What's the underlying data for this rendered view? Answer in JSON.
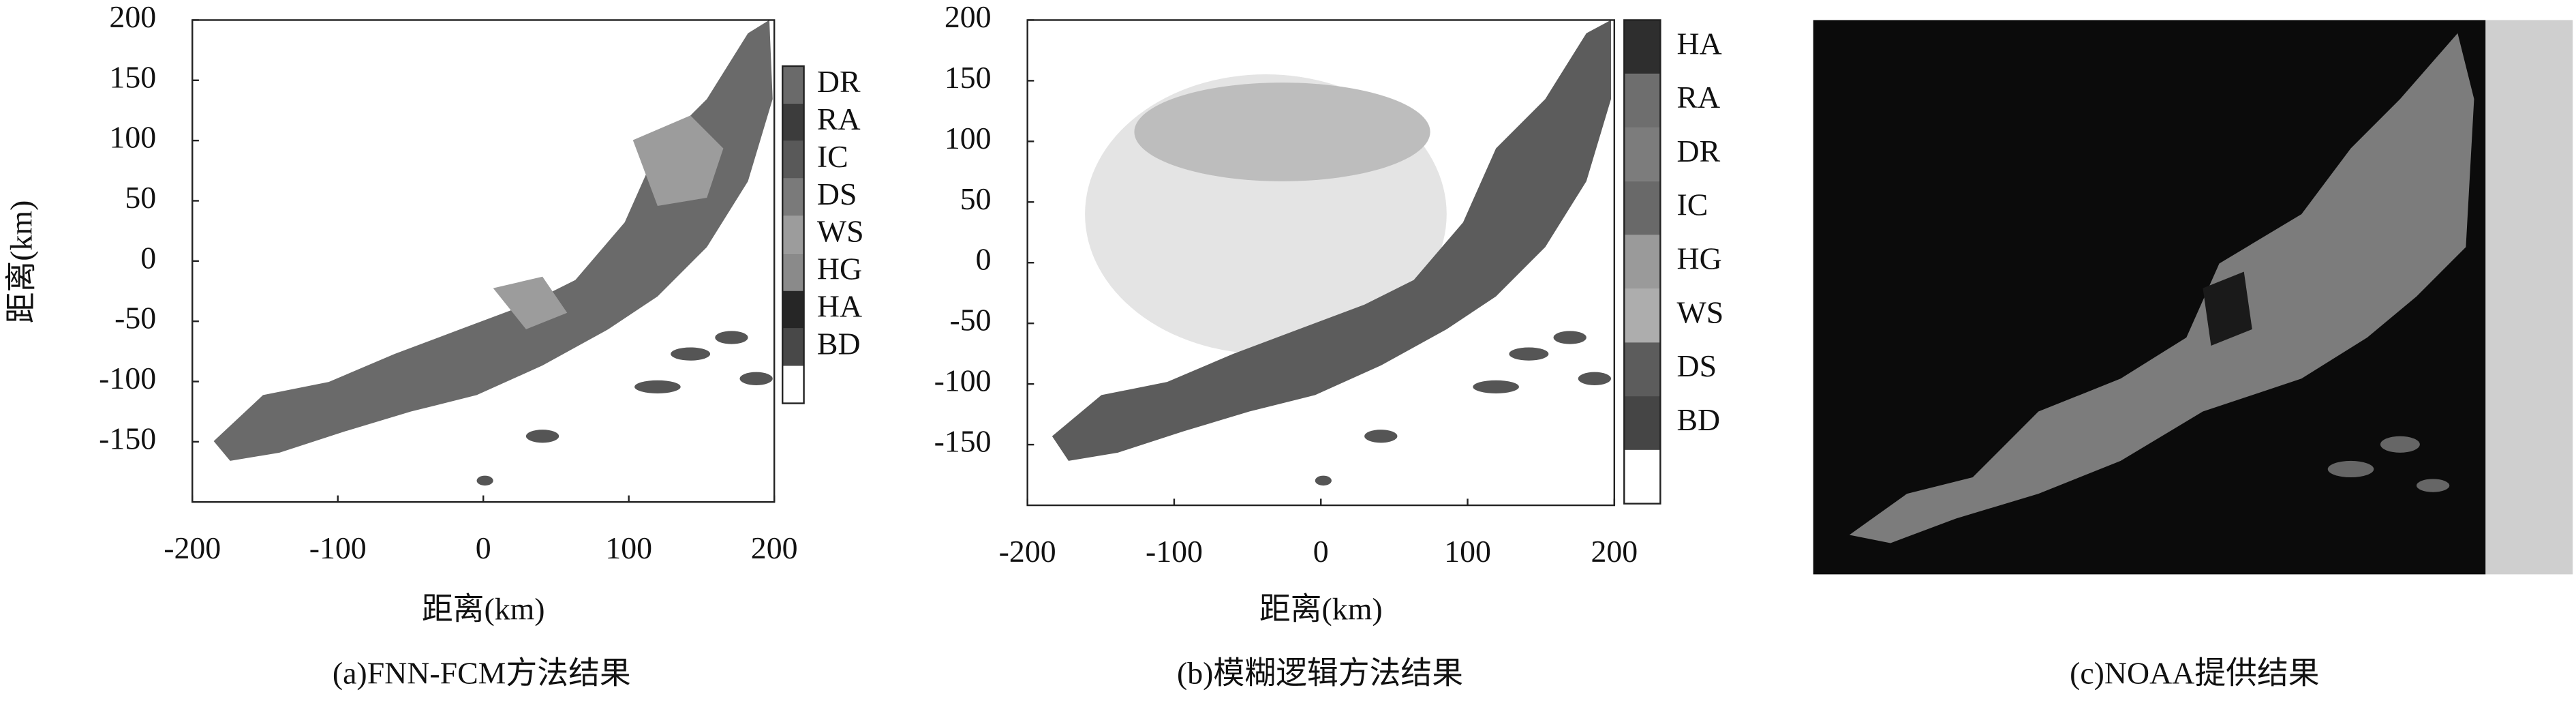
{
  "chart_data": [
    {
      "type": "heatmap",
      "caption": "(a)FNN-FCM方法结果",
      "xlabel": "距离(km)",
      "ylabel": "距离(km)",
      "xlim": [
        -200,
        200
      ],
      "ylim": [
        -200,
        200
      ],
      "xticks": [
        -200,
        -100,
        0,
        100,
        200
      ],
      "yticks": [
        -150,
        -100,
        -50,
        0,
        50,
        100,
        150,
        200
      ],
      "legend": {
        "labels": [
          "DR",
          "RA",
          "IC",
          "DS",
          "WS",
          "HG",
          "HA",
          "BD"
        ],
        "colors": [
          "#6a6a6a",
          "#3c3c3c",
          "#595959",
          "#7a7a7a",
          "#9c9c9c",
          "#8a8a8a",
          "#262626",
          "#484848"
        ]
      }
    },
    {
      "type": "heatmap",
      "caption": "(b)模糊逻辑方法结果",
      "xlabel": "距离(km)",
      "xlim": [
        -200,
        200
      ],
      "ylim": [
        -200,
        200
      ],
      "xticks": [
        -200,
        -100,
        0,
        100,
        200
      ],
      "yticks": [
        -150,
        -100,
        -50,
        0,
        50,
        100,
        150,
        200
      ],
      "legend": {
        "labels": [
          "HA",
          "RA",
          "DR",
          "IC",
          "HG",
          "WS",
          "DS",
          "BD"
        ],
        "colors": [
          "#2e2e2e",
          "#6e6e6e",
          "#7c7c7c",
          "#696969",
          "#9a9a9a",
          "#adadad",
          "#5c5c5c",
          "#454545"
        ]
      }
    },
    {
      "type": "image",
      "caption": "(c)NOAA提供结果"
    }
  ]
}
